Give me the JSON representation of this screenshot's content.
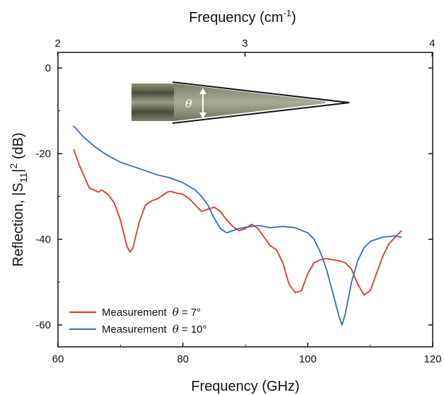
{
  "chart_data": {
    "type": "line",
    "xlabel": "Frequency (GHz)",
    "top_xlabel": "Frequency (cm",
    "top_xlabel_sup": "-1",
    "top_xlabel_end": ")",
    "ylabel": "Reflection, |S",
    "ylabel_sub": "11",
    "ylabel_mid": "|",
    "ylabel_sup": "2",
    "ylabel_end": " (dB)",
    "xlim": [
      60,
      120
    ],
    "ylim": [
      -65,
      0
    ],
    "xticks": [
      60,
      80,
      100,
      120
    ],
    "yticks": [
      0,
      -20,
      -40,
      -60
    ],
    "top_xticks": [
      2,
      3,
      4
    ],
    "inset_label": "θ",
    "series": [
      {
        "name": "Measurement  θ = 7°",
        "legend_prefix": "Measurement",
        "legend_theta": "θ",
        "legend_suffix": " = 7°",
        "color": "#e8332a",
        "x": [
          62.5,
          63.5,
          65,
          66.5,
          67,
          68,
          69,
          70,
          70.5,
          71,
          71.5,
          72,
          73,
          74,
          75,
          76,
          77,
          77.5,
          78,
          79,
          80,
          81,
          82,
          83,
          84,
          85,
          86,
          87,
          88,
          89,
          90,
          91,
          92,
          93,
          94,
          95,
          96,
          97,
          98,
          99,
          100,
          101,
          102,
          103,
          104,
          105,
          106,
          107,
          108,
          109,
          110,
          111,
          112,
          113,
          114,
          115
        ],
        "y": [
          -19,
          -23,
          -28,
          -29,
          -28.5,
          -29.5,
          -31.5,
          -35.5,
          -38.5,
          -41.5,
          -43,
          -42,
          -36,
          -32,
          -31,
          -30.5,
          -29.5,
          -29,
          -28.8,
          -29.2,
          -29.5,
          -30.5,
          -32,
          -33.5,
          -33,
          -32.5,
          -33.5,
          -35.5,
          -37,
          -38,
          -37.5,
          -36.5,
          -37.5,
          -39.5,
          -41.5,
          -42.5,
          -45.5,
          -50.5,
          -52.5,
          -52,
          -48,
          -45.5,
          -44.8,
          -44.5,
          -44.8,
          -45,
          -45.5,
          -47,
          -50.5,
          -53,
          -52,
          -48,
          -44,
          -41,
          -39.5,
          -38
        ]
      },
      {
        "name": "Measurement  θ = 10°",
        "legend_prefix": "Measurement",
        "legend_theta": "θ",
        "legend_suffix": " = 10°",
        "color": "#2f6fb5",
        "x": [
          62.5,
          64,
          66,
          67,
          68,
          70,
          72,
          74,
          76,
          77.5,
          78,
          80,
          82,
          83,
          84,
          85,
          86,
          87,
          88,
          89,
          90,
          91,
          92,
          93,
          94,
          96,
          98,
          100,
          101,
          102,
          103,
          104,
          105,
          105.5,
          106,
          107,
          108,
          109,
          110,
          112,
          114,
          115
        ],
        "y": [
          -13.5,
          -16,
          -18.5,
          -19.5,
          -20.5,
          -22,
          -23,
          -24,
          -25,
          -25.5,
          -25.7,
          -26.8,
          -28.5,
          -30,
          -32,
          -35,
          -37.5,
          -38.5,
          -38,
          -37.5,
          -37.2,
          -37,
          -36.8,
          -37,
          -37.3,
          -37,
          -37.3,
          -38.5,
          -40,
          -43,
          -47,
          -52.5,
          -58,
          -60,
          -57.5,
          -50,
          -45,
          -42,
          -40.5,
          -39.5,
          -39.2,
          -39.5
        ]
      }
    ]
  }
}
